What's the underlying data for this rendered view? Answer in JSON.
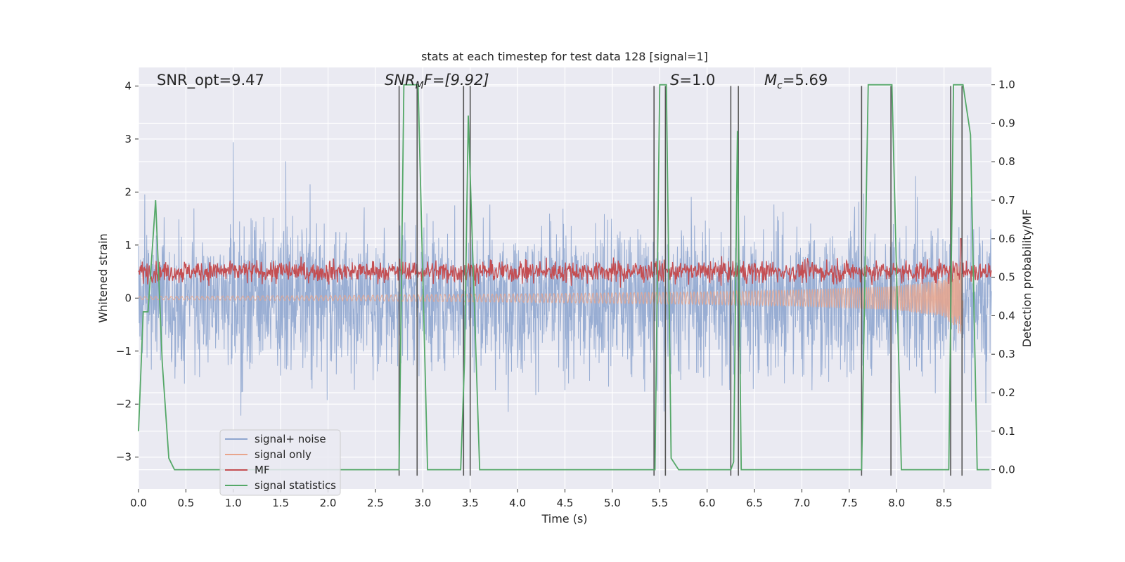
{
  "chart_data": {
    "type": "line",
    "title": "stats at each timestep for test data 128 [signal=1]",
    "xlabel": "Time (s)",
    "ylabel": "Whitened strain",
    "ylabel_right": "Detection probability/MF",
    "xlim": [
      0.0,
      9.0
    ],
    "ylim": [
      -3.6,
      4.35
    ],
    "ylim_right": [
      -0.05,
      1.045
    ],
    "grid": true,
    "legend_position": "lower-left",
    "x_ticks": [
      "0.0",
      "0.5",
      "1.0",
      "1.5",
      "2.0",
      "2.5",
      "3.0",
      "3.5",
      "4.0",
      "4.5",
      "5.0",
      "5.5",
      "6.0",
      "6.5",
      "7.0",
      "7.5",
      "8.0",
      "8.5"
    ],
    "y_ticks": [
      "4",
      "3",
      "2",
      "1",
      "0",
      "−1",
      "−2",
      "−3"
    ],
    "y_right_ticks": [
      "1.0",
      "0.9",
      "0.8",
      "0.7",
      "0.6",
      "0.5",
      "0.4",
      "0.3",
      "0.2",
      "0.1",
      "0.0"
    ],
    "annotations": {
      "snr_opt": "SNR_opt=9.47",
      "snr_mf_prefix": "SNR",
      "snr_mf_sub": "M",
      "snr_mf_suffix": "F=[9.92]",
      "s_var": "S",
      "s_value": "=1.0",
      "mc_var": "M",
      "mc_sub": "c",
      "mc_value": "=5.69"
    },
    "series": [
      {
        "name": "signal+ noise",
        "color": "#8fa6cf",
        "noise_sigma": 1.0,
        "typical_range": [
          -3.3,
          3.9
        ]
      },
      {
        "name": "signal only",
        "color": "#e8a58c",
        "envelope": {
          "x": [
            0.0,
            2.0,
            4.0,
            6.0,
            7.0,
            8.0,
            8.5,
            8.65,
            8.7
          ],
          "amplitude": [
            0.03,
            0.05,
            0.08,
            0.12,
            0.16,
            0.23,
            0.35,
            0.65,
            0.9
          ]
        }
      },
      {
        "name": "MF",
        "color": "#c44e52",
        "axis": "right",
        "mean": 0.515,
        "spread": 0.02,
        "peak": {
          "x": 8.68,
          "y": 0.6
        }
      },
      {
        "name": "signal statistics",
        "color": "#55a868",
        "axis": "right",
        "x": [
          0.0,
          0.05,
          0.1,
          0.18,
          0.25,
          0.32,
          0.38,
          0.45,
          2.75,
          2.8,
          2.95,
          3.05,
          3.4,
          3.44,
          3.48,
          3.6,
          5.45,
          5.5,
          5.57,
          5.62,
          5.7,
          6.25,
          6.28,
          6.32,
          6.36,
          7.63,
          7.7,
          7.95,
          8.05,
          8.55,
          8.6,
          8.7,
          8.78,
          8.85,
          8.98
        ],
        "values": [
          0.1,
          0.41,
          0.41,
          0.7,
          0.28,
          0.03,
          0.0,
          0.0,
          0.0,
          1.0,
          1.0,
          0.0,
          0.0,
          0.28,
          0.92,
          0.0,
          0.0,
          1.0,
          1.0,
          0.03,
          0.0,
          0.0,
          0.02,
          0.88,
          0.0,
          0.0,
          1.0,
          1.0,
          0.0,
          0.0,
          1.0,
          1.0,
          0.87,
          0.0,
          0.0
        ]
      }
    ],
    "vertical_markers": {
      "color": "#555555",
      "x": [
        2.75,
        2.94,
        3.43,
        3.5,
        5.44,
        5.56,
        6.25,
        6.33,
        7.63,
        7.94,
        8.57,
        8.69
      ],
      "y_range": [
        -3.35,
        4.0
      ]
    }
  }
}
